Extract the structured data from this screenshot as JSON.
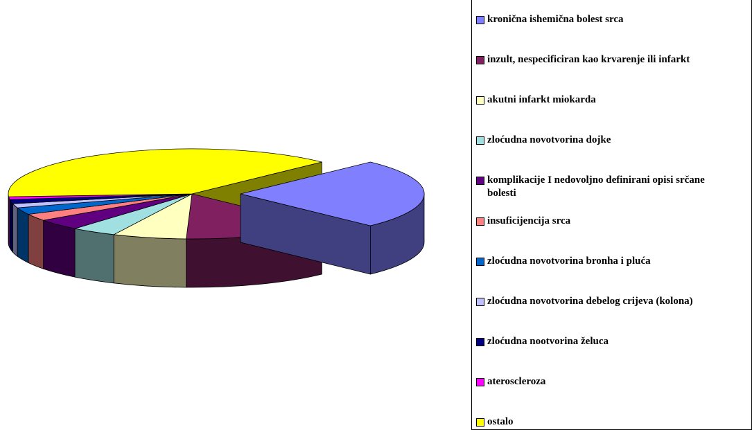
{
  "chart_data": {
    "type": "pie",
    "categories": [
      "kronična ishemična bolest srca",
      "inzult, nespecificiran kao krvarenje ili infarkt",
      "akutni infarkt miokarda",
      "zloćudna novotvorina dojke",
      "komplikacije I nedovoljno definirani opisi srčane bolesti",
      "insuficijencija srca",
      "zloćudna novotvorina bronha  i pluća",
      "zloćudna novotvorina debelog crijeva (kolona)",
      "zloćudna nootvorina želuca",
      "ateroscleroza",
      "ostalo"
    ],
    "values": [
      25,
      13,
      6.5,
      4,
      4,
      2.5,
      2.5,
      1.5,
      1.5,
      1,
      38.5
    ],
    "colors": [
      "#8080ff",
      "#802060",
      "#ffffc0",
      "#a0e0e0",
      "#600080",
      "#ff8080",
      "#0066cc",
      "#c0c0ff",
      "#000080",
      "#ff00ff",
      "#ffff00"
    ],
    "explode": [
      0
    ],
    "legend": "right"
  }
}
